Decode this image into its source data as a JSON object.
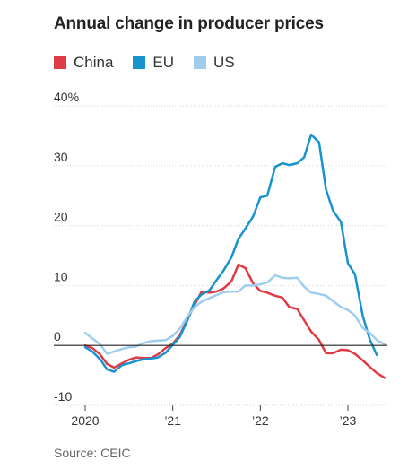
{
  "chart_data": {
    "type": "line",
    "title": "Annual change in producer prices",
    "source": "Source: CEIC",
    "x_ticks": [
      "2020",
      "’21",
      "’22",
      "’23"
    ],
    "x_tick_values": [
      2020.0,
      2021.0,
      2022.0,
      2023.0
    ],
    "xlim": [
      2020.0,
      2023.45
    ],
    "y_ticks": [
      -10,
      0,
      10,
      20,
      30,
      40
    ],
    "y_tick_labels": [
      "-10",
      "0",
      "10",
      "20",
      "30",
      "40%"
    ],
    "ylim": [
      -10,
      40
    ],
    "grid": true,
    "legend_position": "top-left",
    "series": [
      {
        "name": "China",
        "color": "#e03a45",
        "points": [
          [
            2020.0,
            0.0
          ],
          [
            2020.08,
            -0.4
          ],
          [
            2020.17,
            -1.5
          ],
          [
            2020.25,
            -3.1
          ],
          [
            2020.33,
            -3.7
          ],
          [
            2020.42,
            -3.0
          ],
          [
            2020.5,
            -2.4
          ],
          [
            2020.58,
            -2.0
          ],
          [
            2020.67,
            -2.1
          ],
          [
            2020.75,
            -2.1
          ],
          [
            2020.83,
            -1.5
          ],
          [
            2020.92,
            -0.4
          ],
          [
            2021.0,
            0.3
          ],
          [
            2021.08,
            1.7
          ],
          [
            2021.17,
            4.4
          ],
          [
            2021.25,
            6.8
          ],
          [
            2021.33,
            9.0
          ],
          [
            2021.42,
            8.8
          ],
          [
            2021.5,
            9.0
          ],
          [
            2021.58,
            9.5
          ],
          [
            2021.67,
            10.7
          ],
          [
            2021.75,
            13.5
          ],
          [
            2021.83,
            12.9
          ],
          [
            2021.92,
            10.3
          ],
          [
            2022.0,
            9.1
          ],
          [
            2022.08,
            8.8
          ],
          [
            2022.17,
            8.3
          ],
          [
            2022.25,
            8.0
          ],
          [
            2022.33,
            6.4
          ],
          [
            2022.42,
            6.1
          ],
          [
            2022.5,
            4.2
          ],
          [
            2022.58,
            2.3
          ],
          [
            2022.67,
            0.9
          ],
          [
            2022.75,
            -1.3
          ],
          [
            2022.83,
            -1.3
          ],
          [
            2022.92,
            -0.7
          ],
          [
            2023.0,
            -0.8
          ],
          [
            2023.08,
            -1.4
          ],
          [
            2023.17,
            -2.5
          ],
          [
            2023.25,
            -3.6
          ],
          [
            2023.33,
            -4.6
          ],
          [
            2023.42,
            -5.4
          ]
        ]
      },
      {
        "name": "EU",
        "color": "#1793cf",
        "points": [
          [
            2020.0,
            -0.3
          ],
          [
            2020.08,
            -1.0
          ],
          [
            2020.17,
            -2.3
          ],
          [
            2020.25,
            -4.0
          ],
          [
            2020.33,
            -4.4
          ],
          [
            2020.42,
            -3.3
          ],
          [
            2020.5,
            -3.0
          ],
          [
            2020.58,
            -2.6
          ],
          [
            2020.67,
            -2.3
          ],
          [
            2020.75,
            -2.2
          ],
          [
            2020.83,
            -2.0
          ],
          [
            2020.92,
            -1.2
          ],
          [
            2021.0,
            0.1
          ],
          [
            2021.08,
            1.4
          ],
          [
            2021.17,
            4.3
          ],
          [
            2021.25,
            7.4
          ],
          [
            2021.33,
            8.5
          ],
          [
            2021.42,
            9.2
          ],
          [
            2021.5,
            10.9
          ],
          [
            2021.58,
            12.5
          ],
          [
            2021.67,
            14.7
          ],
          [
            2021.75,
            17.8
          ],
          [
            2021.83,
            19.5
          ],
          [
            2021.92,
            21.6
          ],
          [
            2022.0,
            24.7
          ],
          [
            2022.08,
            25.0
          ],
          [
            2022.17,
            29.8
          ],
          [
            2022.25,
            30.4
          ],
          [
            2022.33,
            30.1
          ],
          [
            2022.42,
            30.4
          ],
          [
            2022.5,
            31.4
          ],
          [
            2022.58,
            35.2
          ],
          [
            2022.67,
            33.9
          ],
          [
            2022.75,
            26.0
          ],
          [
            2022.83,
            22.5
          ],
          [
            2022.92,
            20.6
          ],
          [
            2023.0,
            13.7
          ],
          [
            2023.08,
            11.9
          ],
          [
            2023.17,
            4.9
          ],
          [
            2023.25,
            1.0
          ],
          [
            2023.33,
            -1.6
          ]
        ]
      },
      {
        "name": "US",
        "color": "#9fcdec",
        "points": [
          [
            2020.0,
            2.1
          ],
          [
            2020.08,
            1.2
          ],
          [
            2020.17,
            0.2
          ],
          [
            2020.25,
            -1.4
          ],
          [
            2020.33,
            -1.0
          ],
          [
            2020.42,
            -0.6
          ],
          [
            2020.5,
            -0.3
          ],
          [
            2020.58,
            -0.2
          ],
          [
            2020.67,
            0.4
          ],
          [
            2020.75,
            0.7
          ],
          [
            2020.83,
            0.8
          ],
          [
            2020.92,
            0.9
          ],
          [
            2021.0,
            1.6
          ],
          [
            2021.08,
            2.8
          ],
          [
            2021.17,
            4.9
          ],
          [
            2021.25,
            6.4
          ],
          [
            2021.33,
            7.3
          ],
          [
            2021.42,
            7.9
          ],
          [
            2021.5,
            8.4
          ],
          [
            2021.58,
            8.9
          ],
          [
            2021.67,
            9.0
          ],
          [
            2021.75,
            9.0
          ],
          [
            2021.83,
            10.0
          ],
          [
            2021.92,
            10.0
          ],
          [
            2022.0,
            10.2
          ],
          [
            2022.08,
            10.5
          ],
          [
            2022.17,
            11.7
          ],
          [
            2022.25,
            11.3
          ],
          [
            2022.33,
            11.2
          ],
          [
            2022.42,
            11.3
          ],
          [
            2022.5,
            9.8
          ],
          [
            2022.58,
            8.8
          ],
          [
            2022.67,
            8.6
          ],
          [
            2022.75,
            8.3
          ],
          [
            2022.83,
            7.4
          ],
          [
            2022.92,
            6.4
          ],
          [
            2023.0,
            5.9
          ],
          [
            2023.08,
            5.0
          ],
          [
            2023.17,
            2.9
          ],
          [
            2023.25,
            2.1
          ],
          [
            2023.33,
            0.9
          ],
          [
            2023.42,
            0.2
          ]
        ]
      }
    ]
  }
}
